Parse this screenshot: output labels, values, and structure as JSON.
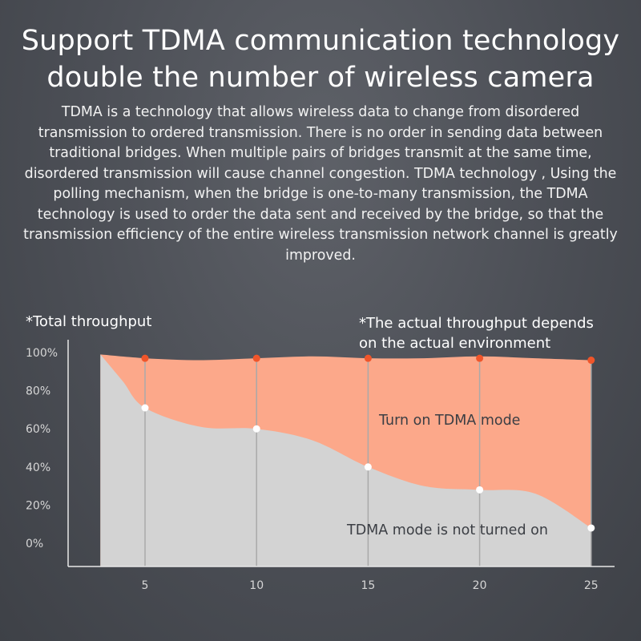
{
  "header": {
    "title_line1": "Support TDMA communication technology",
    "title_line2": "double the number of wireless camera"
  },
  "description": "TDMA is a technology that allows wireless data to change from disordered transmission to ordered transmission. There is no order in sending data between traditional bridges. When multiple pairs of bridges transmit at the same time, disordered transmission will cause channel congestion. TDMA technology , Using the polling mechanism, when the bridge is one-to-many transmission, the TDMA technology is used to order the data sent and received by the bridge, so that the transmission efficiency of the entire wireless transmission network channel is greatly improved.",
  "chart_labels": {
    "total_throughput": "*Total throughput",
    "note_line1": "*The actual throughput depends",
    "note_line2": "on the actual environment"
  },
  "colors": {
    "tdma_on_fill": "#fca88a",
    "tdma_on_marker": "#f0552a",
    "tdma_off_fill": "#d3d3d3",
    "tdma_off_marker": "#ffffff",
    "axis": "#e8e8e8",
    "vertical_line": "#a9a9a9"
  },
  "chart_data": {
    "type": "area",
    "x": [
      5,
      10,
      15,
      20,
      25
    ],
    "xlim": [
      2.5,
      26.5
    ],
    "ylim": [
      0,
      100
    ],
    "y_tick_values": [
      0,
      20,
      40,
      60,
      80,
      100
    ],
    "y_tick_labels": [
      "0%",
      "20%",
      "40%",
      "60%",
      "80%",
      "100%"
    ],
    "x_tick_labels": [
      "5",
      "10",
      "15",
      "20",
      "25"
    ],
    "grid": false,
    "series": [
      {
        "name": "Turn on TDMA mode",
        "marker_values": [
          97,
          97,
          97,
          97,
          96
        ],
        "curve_x": [
          3,
          5,
          7.5,
          10,
          12.5,
          15,
          17.5,
          20,
          22.5,
          25
        ],
        "curve_y": [
          99,
          97,
          96,
          97,
          98,
          97,
          97,
          98,
          97,
          96
        ]
      },
      {
        "name": "TDMA mode is not turned on",
        "marker_values": [
          71,
          60,
          40,
          28,
          8
        ],
        "curve_x": [
          3,
          4,
          5,
          7.5,
          10,
          12.5,
          15,
          17.5,
          20,
          22.5,
          25
        ],
        "curve_y": [
          99,
          85,
          71,
          61,
          60,
          54,
          40,
          30,
          28,
          26,
          8
        ]
      }
    ]
  }
}
